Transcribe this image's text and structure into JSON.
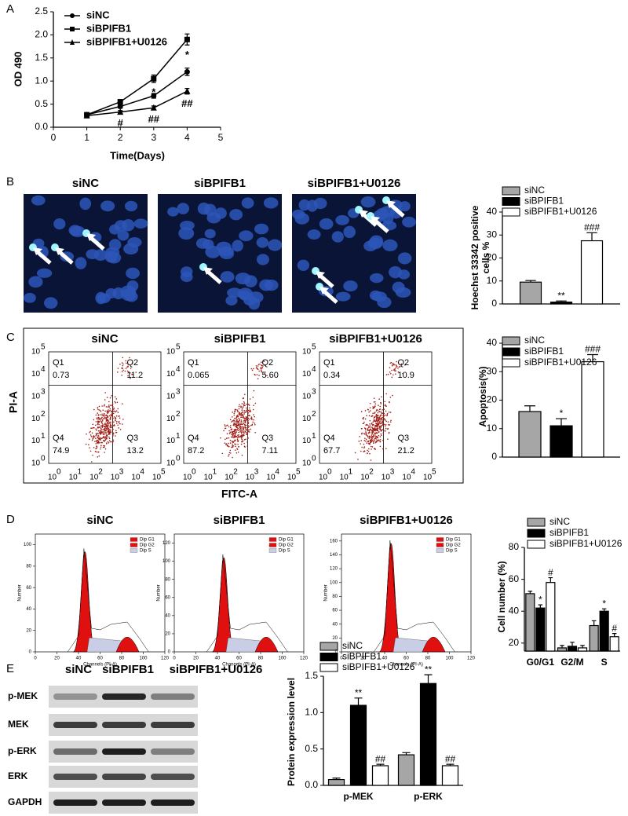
{
  "panel_labels": [
    "A",
    "B",
    "C",
    "D",
    "E"
  ],
  "chart_data": [
    {
      "type": "line",
      "x_label": "Time(Days)",
      "y_label": "OD 490",
      "x": [
        1,
        2,
        3,
        4
      ],
      "xlim": [
        0,
        5
      ],
      "xticks": [
        0,
        1,
        2,
        3,
        4,
        5
      ],
      "ylim": [
        0,
        2.5
      ],
      "yticks": [
        {
          "value": 0,
          "label": "0.0"
        },
        {
          "value": 0.5,
          "label": "0.5"
        },
        {
          "value": 1,
          "label": "1.0"
        },
        {
          "value": 1.5,
          "label": "1.5"
        },
        {
          "value": 2,
          "label": "2.0"
        },
        {
          "value": 2.5,
          "label": "2.5"
        }
      ],
      "series": [
        {
          "name": "siNC",
          "color": "#000000",
          "marker": "circle",
          "values": [
            0.27,
            0.45,
            0.68,
            1.2
          ],
          "errors": [
            0.02,
            0.04,
            0.05,
            0.08
          ],
          "significance": [
            null,
            null,
            null,
            null
          ]
        },
        {
          "name": "siBPIFB1",
          "color": "#000000",
          "marker": "square",
          "values": [
            0.27,
            0.55,
            1.05,
            1.9
          ],
          "errors": [
            0.03,
            0.05,
            0.08,
            0.12
          ],
          "significance": [
            null,
            null,
            "*",
            "*"
          ]
        },
        {
          "name": "siBPIFB1+U0126",
          "color": "#000000",
          "marker": "triangle",
          "values": [
            0.25,
            0.33,
            0.42,
            0.78
          ],
          "errors": [
            0.02,
            0.03,
            0.04,
            0.06
          ],
          "significance": [
            null,
            "#",
            "##",
            "##"
          ]
        }
      ]
    },
    {
      "type": "bar",
      "y_label": [
        "Hoechst 33342 positive",
        "cells %"
      ],
      "categories": [
        null
      ],
      "ylim": [
        0,
        40
      ],
      "yticks": [
        0,
        10,
        20,
        30,
        40
      ],
      "series": [
        {
          "name": "siNC",
          "color": "#a6a6a6",
          "values": [
            9.5
          ],
          "errors": [
            0.7
          ],
          "significance": [
            null
          ]
        },
        {
          "name": "siBPIFB1",
          "color": "#000000",
          "values": [
            0.8
          ],
          "errors": [
            0.5
          ],
          "significance": [
            "**"
          ]
        },
        {
          "name": "siBPIFB1+U0126",
          "color": "#ffffff",
          "values": [
            27.5
          ],
          "errors": [
            3.5
          ],
          "significance": [
            "###"
          ]
        }
      ]
    },
    {
      "type": "bar",
      "y_label": "Apoptosis(%)",
      "categories": [
        null
      ],
      "ylim": [
        0,
        40
      ],
      "yticks": [
        0,
        10,
        20,
        30,
        40
      ],
      "series": [
        {
          "name": "siNC",
          "color": "#a6a6a6",
          "values": [
            16
          ],
          "errors": [
            2
          ],
          "significance": [
            null
          ]
        },
        {
          "name": "siBPIFB1",
          "color": "#000000",
          "values": [
            11
          ],
          "errors": [
            2.5
          ],
          "significance": [
            "*"
          ]
        },
        {
          "name": "siBPIFB1+U0126",
          "color": "#ffffff",
          "values": [
            33.5
          ],
          "errors": [
            2.5
          ],
          "significance": [
            "###"
          ]
        }
      ]
    },
    {
      "type": "bar",
      "y_label": "Cell number (%)",
      "categories": [
        "G0/G1",
        "G2/M",
        "S"
      ],
      "ylim": [
        15,
        80
      ],
      "yticks": [
        20,
        40,
        60,
        80
      ],
      "series": [
        {
          "name": "siNC",
          "color": "#a6a6a6",
          "values": [
            51,
            17,
            31
          ],
          "errors": [
            1.5,
            1.5,
            3
          ],
          "significance": [
            null,
            null,
            null
          ]
        },
        {
          "name": "siBPIFB1",
          "color": "#000000",
          "values": [
            42,
            18,
            40
          ],
          "errors": [
            2,
            2.5,
            1.5
          ],
          "significance": [
            "*",
            null,
            "*"
          ]
        },
        {
          "name": "siBPIFB1+U0126",
          "color": "#ffffff",
          "values": [
            58,
            17,
            24
          ],
          "errors": [
            3,
            1.5,
            2
          ],
          "significance": [
            "#",
            null,
            "#"
          ]
        }
      ]
    },
    {
      "type": "bar",
      "y_label": "Protein expression level",
      "categories": [
        "p-MEK",
        "p-ERK"
      ],
      "ylim": [
        0,
        1.5
      ],
      "yticks": [
        {
          "value": 0,
          "label": "0.0"
        },
        {
          "value": 0.5,
          "label": "0.5"
        },
        {
          "value": 1,
          "label": "1.0"
        },
        {
          "value": 1.5,
          "label": "1.5"
        }
      ],
      "series": [
        {
          "name": "siNC",
          "color": "#a6a6a6",
          "values": [
            0.08,
            0.42
          ],
          "errors": [
            0.02,
            0.03
          ],
          "significance": [
            null,
            null
          ]
        },
        {
          "name": "siBPIFB1",
          "color": "#000000",
          "values": [
            1.1,
            1.4
          ],
          "errors": [
            0.1,
            0.12
          ],
          "significance": [
            "**",
            "**"
          ]
        },
        {
          "name": "siBPIFB1+U0126",
          "color": "#ffffff",
          "values": [
            0.27,
            0.27
          ],
          "errors": [
            0.02,
            0.02
          ],
          "significance": [
            "##",
            "##"
          ]
        }
      ]
    }
  ],
  "microscopy": {
    "titles": [
      "siNC",
      "siBPIFB1",
      "siBPIFB1+U0126"
    ]
  },
  "flow_cytometry": {
    "y_label": "PI-A",
    "x_label": "FITC-A",
    "tick_base": "10",
    "tick_exponents": [
      0,
      1,
      2,
      3,
      4,
      5
    ],
    "plots": [
      {
        "title": "siNC",
        "quadrants": [
          {
            "name": "Q1",
            "value": "0.73"
          },
          {
            "name": "Q2",
            "value": "11.2"
          },
          {
            "name": "Q4",
            "value": "74.9"
          },
          {
            "name": "Q3",
            "value": "13.2"
          }
        ]
      },
      {
        "title": "siBPIFB1",
        "quadrants": [
          {
            "name": "Q1",
            "value": "0.065"
          },
          {
            "name": "Q2",
            "value": "5.60"
          },
          {
            "name": "Q4",
            "value": "87.2"
          },
          {
            "name": "Q3",
            "value": "7.11"
          }
        ]
      },
      {
        "title": "siBPIFB1+U0126",
        "quadrants": [
          {
            "name": "Q1",
            "value": "0.34"
          },
          {
            "name": "Q2",
            "value": "10.9"
          },
          {
            "name": "Q4",
            "value": "67.7"
          },
          {
            "name": "Q3",
            "value": "21.2"
          }
        ]
      }
    ]
  },
  "cell_cycle": {
    "x_label": "Channels (PI-A)",
    "y_label": "Number",
    "legend": [
      "Dip G1",
      "Dip G2",
      "Dip S"
    ],
    "xlim": [
      0,
      120
    ],
    "xticks": [
      0,
      20,
      40,
      60,
      80,
      100,
      120
    ],
    "plots": [
      {
        "title": "siNC",
        "ylim": [
          0,
          110
        ],
        "yticks": [
          0,
          20,
          40,
          60,
          80,
          100
        ]
      },
      {
        "title": "siBPIFB1",
        "ylim": [
          0,
          130
        ],
        "yticks": [
          0,
          20,
          40,
          60,
          80,
          100,
          120
        ]
      },
      {
        "title": "siBPIFB1+U0126",
        "ylim": [
          0,
          170
        ],
        "yticks": [
          0,
          20,
          40,
          60,
          80,
          100,
          120,
          140,
          160
        ]
      }
    ]
  },
  "western_blot": {
    "lanes": [
      "siNC",
      "siBPIFB1",
      "siBPIFB1+U0126"
    ],
    "proteins": [
      "p-MEK",
      "MEK",
      "p-ERK",
      "ERK",
      "GAPDH"
    ]
  }
}
